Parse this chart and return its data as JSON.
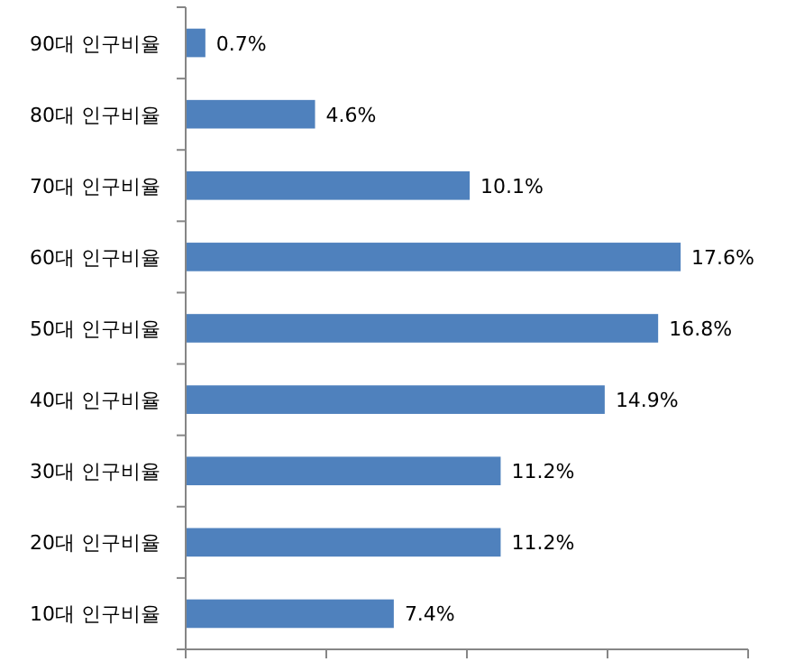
{
  "chart_data": {
    "type": "bar",
    "orientation": "horizontal",
    "categories": [
      "90대 인구비율",
      "80대 인구비율",
      "70대 인구비율",
      "60대 인구비율",
      "50대 인구비율",
      "40대 인구비율",
      "30대 인구비율",
      "20대 인구비율",
      "10대 인구비율"
    ],
    "values": [
      0.7,
      4.6,
      10.1,
      17.6,
      16.8,
      14.9,
      11.2,
      11.2,
      7.4
    ],
    "value_labels": [
      "0.7%",
      "4.6%",
      "10.1%",
      "17.6%",
      "16.8%",
      "14.9%",
      "11.2%",
      "11.2%",
      "7.4%"
    ],
    "color": "#4f81bd",
    "xlim": [
      0,
      20
    ],
    "xticks": [
      {
        "value": 0,
        "label": null
      },
      {
        "value": 5,
        "label": null
      },
      {
        "value": 10,
        "label": null
      },
      {
        "value": 15,
        "label": null
      },
      {
        "value": 20,
        "label": null
      }
    ],
    "tick_labels": "y",
    "grid": false
  }
}
